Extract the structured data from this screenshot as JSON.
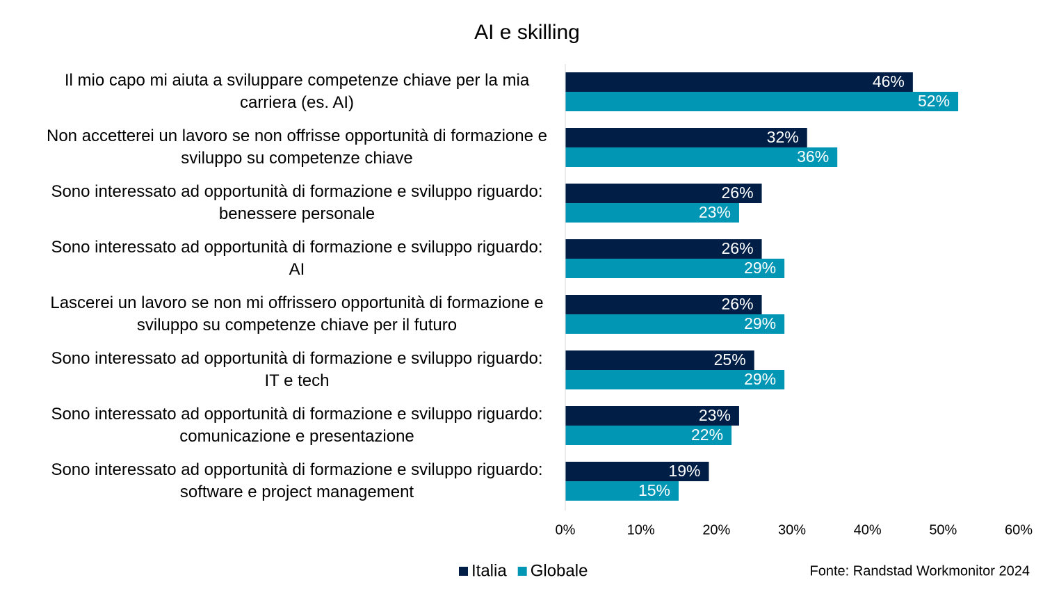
{
  "chart_data": {
    "type": "bar",
    "orientation": "horizontal",
    "title": "AI e skilling",
    "categories": [
      "Il mio capo mi aiuta a sviluppare competenze chiave per la mia carriera (es. AI)",
      "Non accetterei un lavoro se non offrisse opportunità di formazione e sviluppo su competenze chiave",
      "Sono interessato ad opportunità di formazione e sviluppo riguardo: benessere personale",
      "Sono interessato ad opportunità di formazione e sviluppo riguardo: AI",
      "Lascerei un lavoro se non mi offrissero opportunità di formazione e sviluppo su competenze chiave per il futuro",
      "Sono interessato ad opportunità di formazione e sviluppo riguardo: IT e tech",
      "Sono interessato ad opportunità di formazione e sviluppo riguardo: comunicazione e presentazione",
      "Sono interessato ad opportunità di formazione e sviluppo riguardo: software e project management"
    ],
    "series": [
      {
        "name": "Italia",
        "color": "#001e46",
        "values": [
          46,
          32,
          26,
          26,
          26,
          25,
          23,
          19
        ],
        "value_labels": [
          "46%",
          "32%",
          "26%",
          "26%",
          "26%",
          "25%",
          "23%",
          "19%"
        ]
      },
      {
        "name": "Globale",
        "color": "#0096b4",
        "values": [
          52,
          36,
          23,
          29,
          29,
          29,
          22,
          15
        ],
        "value_labels": [
          "52%",
          "36%",
          "23%",
          "29%",
          "29%",
          "29%",
          "22%",
          "15%"
        ]
      }
    ],
    "xlim": [
      0,
      60
    ],
    "xticks": [
      {
        "value": 0,
        "label": "0%"
      },
      {
        "value": 10,
        "label": "10%"
      },
      {
        "value": 20,
        "label": "20%"
      },
      {
        "value": 30,
        "label": "30%"
      },
      {
        "value": 40,
        "label": "40%"
      },
      {
        "value": 50,
        "label": "50%"
      },
      {
        "value": 60,
        "label": "60%"
      }
    ],
    "legend": "bottom",
    "source": "Fonte: Randstad Workmonitor 2024"
  }
}
